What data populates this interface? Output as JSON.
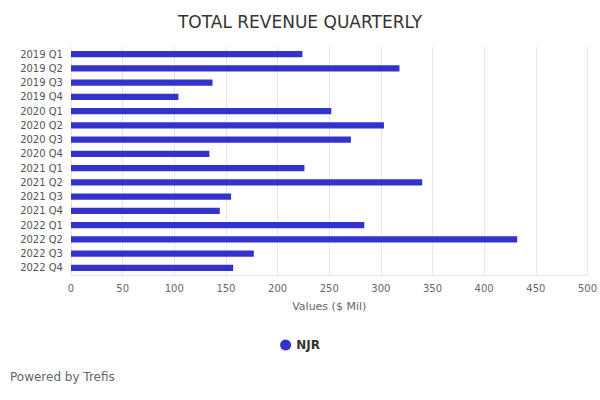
{
  "chart_data": {
    "type": "bar",
    "title": "TOTAL REVENUE QUARTERLY",
    "orientation": "horizontal",
    "categories": [
      "2019 Q1",
      "2019 Q2",
      "2019 Q3",
      "2019 Q4",
      "2020 Q1",
      "2020 Q2",
      "2020 Q3",
      "2020 Q4",
      "2021 Q1",
      "2021 Q2",
      "2021 Q3",
      "2021 Q4",
      "2022 Q1",
      "2022 Q2",
      "2022 Q3",
      "2022 Q4"
    ],
    "series": [
      {
        "name": "NJR",
        "color": "#3333cc",
        "values": [
          224,
          318,
          137,
          104,
          252,
          303,
          271,
          134,
          226,
          340,
          155,
          144,
          284,
          432,
          177,
          157
        ]
      }
    ],
    "x_label": "Values ($ Mil)",
    "xlim": [
      0,
      500
    ],
    "xticks": [
      0,
      50,
      100,
      150,
      200,
      250,
      300,
      350,
      400,
      450,
      500
    ],
    "grid": true,
    "legend": "bottom",
    "annotations": [
      "Powered by Trefis"
    ]
  }
}
